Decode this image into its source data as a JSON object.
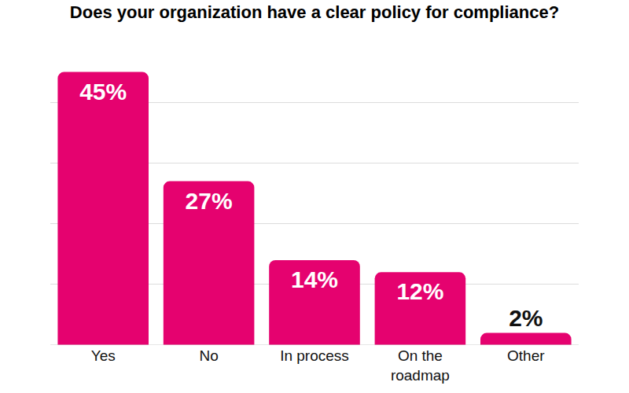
{
  "chart_data": {
    "type": "bar",
    "title": "Does your organization have a clear policy for compliance?",
    "categories": [
      "Yes",
      "No",
      "In process",
      "On the roadmap",
      "Other"
    ],
    "values": [
      45,
      27,
      14,
      12,
      2
    ],
    "value_labels": [
      "45%",
      "27%",
      "14%",
      "12%",
      "2%"
    ],
    "color": "#E5026F",
    "ylim": [
      0,
      50
    ],
    "yticks": [
      0,
      10,
      20,
      30,
      40,
      50
    ],
    "grid": true,
    "data_labels": true,
    "tick_labels": "x"
  }
}
